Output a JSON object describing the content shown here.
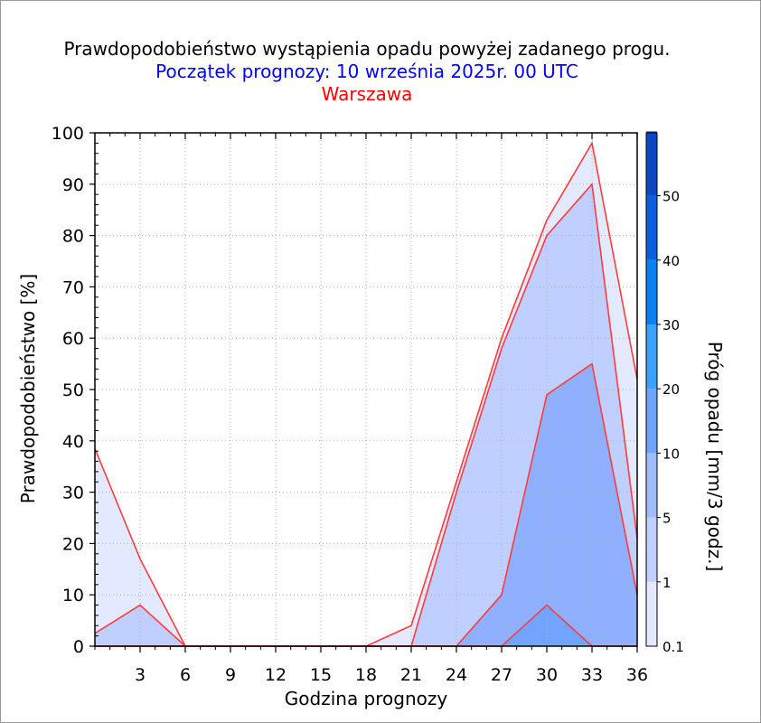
{
  "title": "Prawdopodobieństwo wystąpienia opadu powyżej zadanego progu.",
  "subtitle": "Początek prognozy: 10 września 2025r. 00 UTC",
  "location": "Warszawa",
  "colors": {
    "title": "#000000",
    "subtitle": "#0000ff",
    "location": "#ff0000",
    "outline": "#ff3b3b",
    "grid": "#b0b0b0"
  },
  "chart_data": {
    "type": "area",
    "xlabel": "Godzina prognozy",
    "ylabel": "Prawdopodobieństwo [%]",
    "xlim": [
      0,
      36
    ],
    "ylim": [
      0,
      100
    ],
    "xticks": [
      3,
      6,
      9,
      12,
      15,
      18,
      21,
      24,
      27,
      30,
      33,
      36
    ],
    "yticks": [
      0,
      10,
      20,
      30,
      40,
      50,
      60,
      70,
      80,
      90,
      100
    ],
    "grid": true,
    "x": [
      0,
      3,
      6,
      9,
      12,
      15,
      18,
      21,
      24,
      27,
      30,
      33,
      36
    ],
    "series": [
      {
        "threshold": "0.1",
        "color": "#e3e9ff",
        "values": [
          38.5,
          17,
          0,
          0,
          0,
          0,
          0,
          4,
          32,
          60,
          83,
          98,
          52
        ]
      },
      {
        "threshold": "1",
        "color": "#bfcfff",
        "values": [
          2.5,
          8,
          0,
          0,
          0,
          0,
          0,
          0,
          30,
          58,
          80,
          90,
          21
        ]
      },
      {
        "threshold": "5",
        "color": "#8eb0ff",
        "values": [
          0,
          0,
          0,
          0,
          0,
          0,
          0,
          0,
          0,
          10,
          49,
          55,
          10
        ]
      },
      {
        "threshold": "10",
        "color": "#70a4ff",
        "values": [
          0,
          0,
          0,
          0,
          0,
          0,
          0,
          0,
          0,
          0,
          8,
          0,
          0
        ]
      }
    ],
    "colorbar": {
      "title": "Próg opadu [mm/3 godz.]",
      "tick_labels": [
        "0.1",
        "1",
        "5",
        "10",
        "20",
        "30",
        "40",
        "50"
      ],
      "colors": [
        "#e3e9ff",
        "#bfcfff",
        "#a0bcff",
        "#70a4ff",
        "#3ca0ff",
        "#0b80f0",
        "#0a60dc",
        "#0a48c4",
        "#0a3aa8"
      ]
    }
  }
}
